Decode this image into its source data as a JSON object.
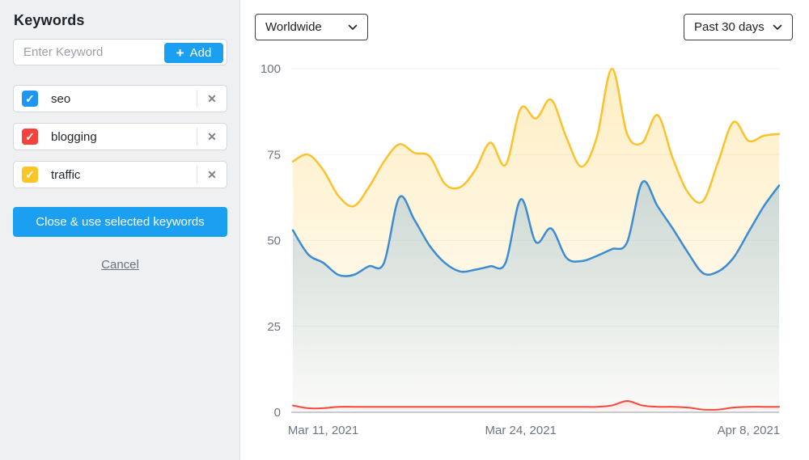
{
  "sidebar": {
    "title": "Keywords",
    "keyword_input": {
      "placeholder": "Enter Keyword",
      "value": ""
    },
    "add_button_label": "Add",
    "keywords": [
      {
        "label": "seo",
        "checked": true,
        "checkbox_color": "#1e96f3"
      },
      {
        "label": "blogging",
        "checked": true,
        "checkbox_color": "#f4433a"
      },
      {
        "label": "traffic",
        "checked": true,
        "checkbox_color": "#fdc428"
      }
    ],
    "apply_button_label": "Close & use selected keywords",
    "cancel_label": "Cancel"
  },
  "toolbar": {
    "region_dropdown": {
      "selected": "Worldwide"
    },
    "time_range_dropdown": {
      "selected": "Past 30 days"
    }
  },
  "icons": {
    "add": "+",
    "remove": "✕",
    "check": "✓"
  },
  "colors": {
    "accent_blue": "#1b9ff0",
    "sidebar_bg": "#eef0f2"
  },
  "chart_data": {
    "type": "area",
    "x_tick_labels": [
      "Mar 11, 2021",
      "Mar 24, 2021",
      "Apr 8, 2021"
    ],
    "x_tick_positions": [
      2,
      15,
      30
    ],
    "y_ticks": [
      0,
      25,
      50,
      75,
      100
    ],
    "ylim": [
      0,
      100
    ],
    "grid": true,
    "legend_position": "none",
    "series": [
      {
        "name": "traffic",
        "color": "#fcc22c",
        "fill_opacity": 0.28,
        "values": [
          73,
          75,
          70.5,
          63,
          60,
          65.5,
          73,
          78,
          75.5,
          74.5,
          66.5,
          65.5,
          70.5,
          78.5,
          72,
          88.5,
          85.5,
          91,
          80,
          71.5,
          80,
          100,
          81,
          78.5,
          86.5,
          74,
          64,
          61.5,
          73,
          84.5,
          79,
          80.5,
          81
        ]
      },
      {
        "name": "seo",
        "color": "#3d8bd0",
        "fill_opacity": 0.26,
        "values": [
          53,
          46,
          43.5,
          40,
          40,
          42.5,
          43.5,
          62.5,
          56,
          48.5,
          43.5,
          41,
          41.5,
          42.5,
          43.5,
          62,
          49.5,
          53.5,
          45,
          44,
          45.5,
          47.5,
          49.5,
          67,
          60,
          53.5,
          46.5,
          40.5,
          41,
          45,
          52.5,
          60,
          66
        ]
      },
      {
        "name": "blogging",
        "color": "#f4493c",
        "fill_opacity": 0.12,
        "values": [
          2,
          1.2,
          1.2,
          1.6,
          1.6,
          1.6,
          1.6,
          1.6,
          1.6,
          1.6,
          1.6,
          1.6,
          1.6,
          1.6,
          1.6,
          1.6,
          1.6,
          1.6,
          1.6,
          1.6,
          1.6,
          2,
          3.3,
          2,
          1.6,
          1.6,
          1.4,
          0.8,
          0.8,
          1.4,
          1.6,
          1.6,
          1.6
        ]
      }
    ]
  }
}
